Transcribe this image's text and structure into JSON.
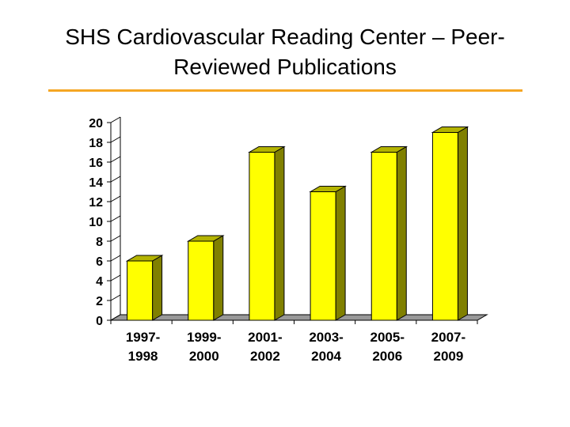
{
  "slide": {
    "title_line1": "SHS Cardiovascular Reading Center – Peer-",
    "title_line2": "Reviewed Publications",
    "rule_color": "#f5a623"
  },
  "chart_data": {
    "type": "bar",
    "title": "",
    "xlabel": "",
    "ylabel": "",
    "categories": [
      [
        "1997-",
        "1998"
      ],
      [
        "1999-",
        "2000"
      ],
      [
        "2001-",
        "2002"
      ],
      [
        "2003-",
        "2004"
      ],
      [
        "2005-",
        "2006"
      ],
      [
        "2007-",
        "2009"
      ]
    ],
    "values": [
      6,
      8,
      17,
      13,
      17,
      19
    ],
    "ylim": [
      0,
      20
    ],
    "yticks": [
      0,
      2,
      4,
      6,
      8,
      10,
      12,
      14,
      16,
      18,
      20
    ],
    "grid": false,
    "legend": "none",
    "three_d": true,
    "colors": {
      "bar_front": "#ffff00",
      "bar_side": "#808000",
      "bar_top": "#b3b300",
      "floor": "#999999",
      "axis": "#000000"
    }
  }
}
